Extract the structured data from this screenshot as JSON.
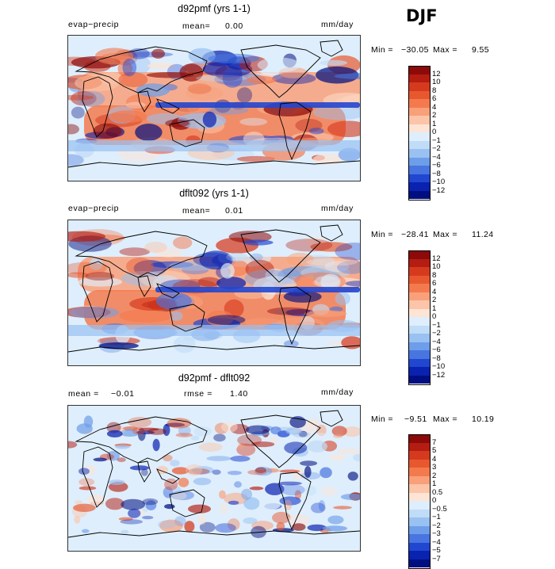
{
  "season": "DJF",
  "chart_data": [
    {
      "type": "heatmap",
      "title": "d92pmf (yrs 1-1)",
      "variable": "evap−precip",
      "stat1_label": "mean=",
      "stat1_value": "0.00",
      "units": "mm/day",
      "min_label": "Min =",
      "min_value": "−30.05",
      "max_label": "Max =",
      "max_value": "9.55",
      "colorbar_levels": [
        "12",
        "10",
        "8",
        "6",
        "4",
        "2",
        "1",
        "0",
        "−1",
        "−2",
        "−4",
        "−6",
        "−8",
        "−10",
        "−12"
      ],
      "colorbar_colors": [
        "#8c0a0a",
        "#b51d12",
        "#d63a1e",
        "#e8582e",
        "#f47a4e",
        "#f9a07a",
        "#fcc4a8",
        "#fde4d4",
        "#deeefc",
        "#c0dcf7",
        "#99c1f2",
        "#6e9ee9",
        "#4875e0",
        "#2147d1",
        "#0a22b0",
        "#000f80"
      ]
    },
    {
      "type": "heatmap",
      "title": "dflt092 (yrs 1-1)",
      "variable": "evap−precip",
      "stat1_label": "mean=",
      "stat1_value": "0.01",
      "units": "mm/day",
      "min_label": "Min =",
      "min_value": "−28.41",
      "max_label": "Max =",
      "max_value": "11.24",
      "colorbar_levels": [
        "12",
        "10",
        "8",
        "6",
        "4",
        "2",
        "1",
        "0",
        "−1",
        "−2",
        "−4",
        "−6",
        "−8",
        "−10",
        "−12"
      ],
      "colorbar_colors": [
        "#8c0a0a",
        "#b51d12",
        "#d63a1e",
        "#e8582e",
        "#f47a4e",
        "#f9a07a",
        "#fcc4a8",
        "#fde4d4",
        "#deeefc",
        "#c0dcf7",
        "#99c1f2",
        "#6e9ee9",
        "#4875e0",
        "#2147d1",
        "#0a22b0",
        "#000f80"
      ]
    },
    {
      "type": "heatmap",
      "title": "d92pmf - dflt092",
      "stat1_label": "mean =",
      "stat1_value": "−0.01",
      "stat2_label": "rmse =",
      "stat2_value": "1.40",
      "units": "mm/day",
      "min_label": "Min =",
      "min_value": "−9.51",
      "max_label": "Max =",
      "max_value": "10.19",
      "colorbar_levels": [
        "7",
        "5",
        "4",
        "3",
        "2",
        "1",
        "0.5",
        "0",
        "−0.5",
        "−1",
        "−2",
        "−3",
        "−4",
        "−5",
        "−7"
      ],
      "colorbar_colors": [
        "#8c0a0a",
        "#b51d12",
        "#d63a1e",
        "#e8582e",
        "#f47a4e",
        "#f9a07a",
        "#fcc4a8",
        "#fde4d4",
        "#deeefc",
        "#c0dcf7",
        "#99c1f2",
        "#6e9ee9",
        "#4875e0",
        "#2147d1",
        "#0a22b0",
        "#000f80"
      ]
    }
  ]
}
